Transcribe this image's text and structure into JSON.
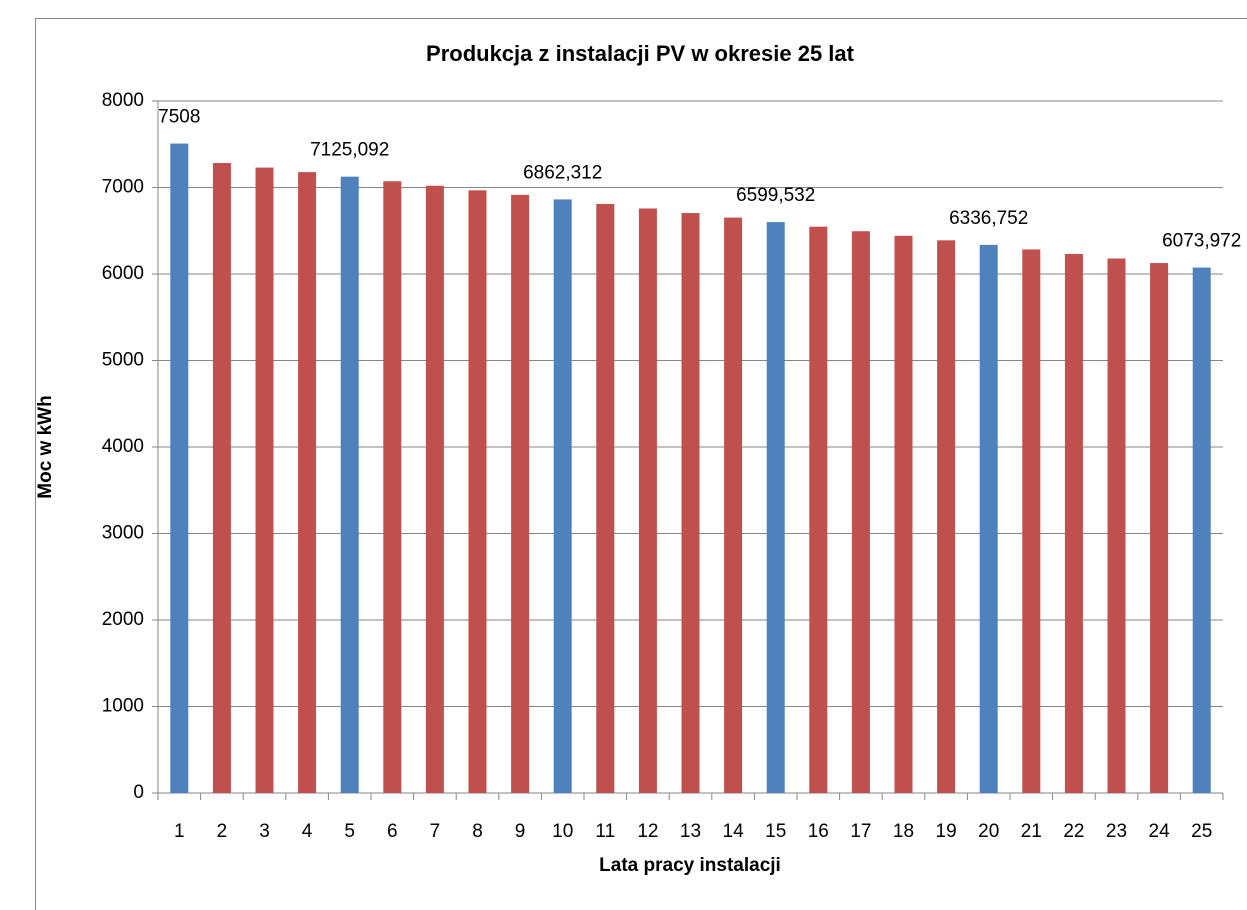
{
  "chart_data": {
    "type": "bar",
    "title": "Produkcja z instalacji PV w okresie 25 lat",
    "ylabel": "Moc w kWh",
    "xlabel": "Lata pracy instalacji",
    "categories": [
      "1",
      "2",
      "3",
      "4",
      "5",
      "6",
      "7",
      "8",
      "9",
      "10",
      "11",
      "12",
      "13",
      "14",
      "15",
      "16",
      "17",
      "18",
      "19",
      "20",
      "21",
      "22",
      "23",
      "24",
      "25"
    ],
    "values": [
      7508,
      7282.76,
      7230.204,
      7177.648,
      7125.092,
      7072.536,
      7019.98,
      6967.424,
      6914.868,
      6862.312,
      6809.756,
      6757.2,
      6704.644,
      6652.088,
      6599.532,
      6546.976,
      6494.42,
      6441.864,
      6389.308,
      6336.752,
      6284.196,
      6231.64,
      6179.084,
      6126.528,
      6073.972
    ],
    "value_labels": [
      "7508",
      null,
      null,
      null,
      "7125,092",
      null,
      null,
      null,
      null,
      "6862,312",
      null,
      null,
      null,
      null,
      "6599,532",
      null,
      null,
      null,
      null,
      "6336,752",
      null,
      null,
      null,
      null,
      "6073,972"
    ],
    "colors": [
      "#4f81bd",
      "#c0504d",
      "#c0504d",
      "#c0504d",
      "#4f81bd",
      "#c0504d",
      "#c0504d",
      "#c0504d",
      "#c0504d",
      "#4f81bd",
      "#c0504d",
      "#c0504d",
      "#c0504d",
      "#c0504d",
      "#4f81bd",
      "#c0504d",
      "#c0504d",
      "#c0504d",
      "#c0504d",
      "#4f81bd",
      "#c0504d",
      "#c0504d",
      "#c0504d",
      "#c0504d",
      "#4f81bd"
    ],
    "ylim": [
      0,
      8000
    ],
    "yticks": [
      0,
      1000,
      2000,
      3000,
      4000,
      5000,
      6000,
      7000,
      8000
    ],
    "grid": true
  }
}
